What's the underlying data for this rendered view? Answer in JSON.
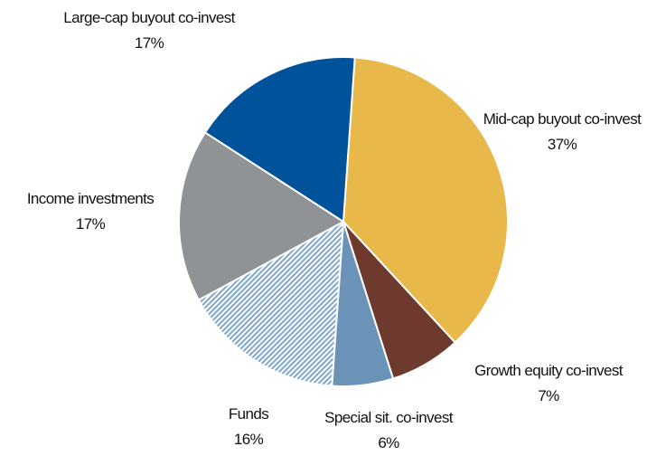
{
  "chart_data": {
    "type": "pie",
    "categories": [
      "Mid-cap buyout co-invest",
      "Growth equity co-invest",
      "Special sit. co-invest",
      "Funds",
      "Income investments",
      "Large-cap buyout co-invest"
    ],
    "values": [
      37,
      7,
      6,
      16,
      17,
      17
    ],
    "value_labels": [
      "37%",
      "7%",
      "6%",
      "16%",
      "17%",
      "17%"
    ],
    "colors": [
      "#e8b84b",
      "#6e3a2e",
      "#6b93b8",
      "#7fa6cc",
      "#8f9396",
      "#00529b"
    ],
    "hatched": [
      false,
      false,
      false,
      true,
      false,
      false
    ]
  }
}
